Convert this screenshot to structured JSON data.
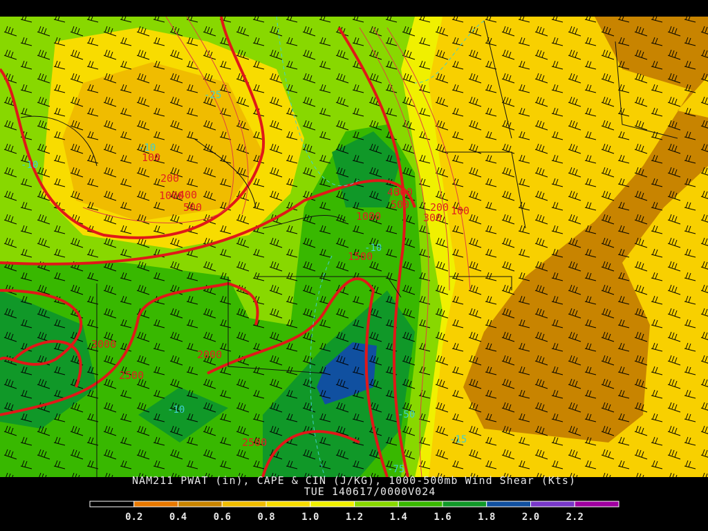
{
  "title": "NAM211 PWAT (in), CAPE & CIN (J/KG), 1000-500mb Wind Shear (Kts)",
  "valid": "TUE 140617/0000V024",
  "colorbar": {
    "colors": [
      "#000000",
      "#e87800",
      "#c88400",
      "#f0bc00",
      "#f8dc00",
      "#f0f000",
      "#88d800",
      "#38b800",
      "#109828",
      "#1050a0",
      "#7838c8",
      "#a000a0"
    ],
    "labels": [
      "0.2",
      "0.4",
      "0.6",
      "0.8",
      "1.0",
      "1.2",
      "1.4",
      "1.6",
      "1.8",
      "2.0",
      "2.2"
    ]
  },
  "contour_labels": [
    "100",
    "200",
    "400",
    "1000",
    "500",
    "-25",
    "-10",
    "-10",
    "400",
    "500",
    "1000",
    "300",
    "200",
    "300",
    "100",
    "-10",
    "1500",
    "3000",
    "2000",
    "2500",
    "-10",
    "-50",
    "2500",
    "-15",
    "-75"
  ]
}
